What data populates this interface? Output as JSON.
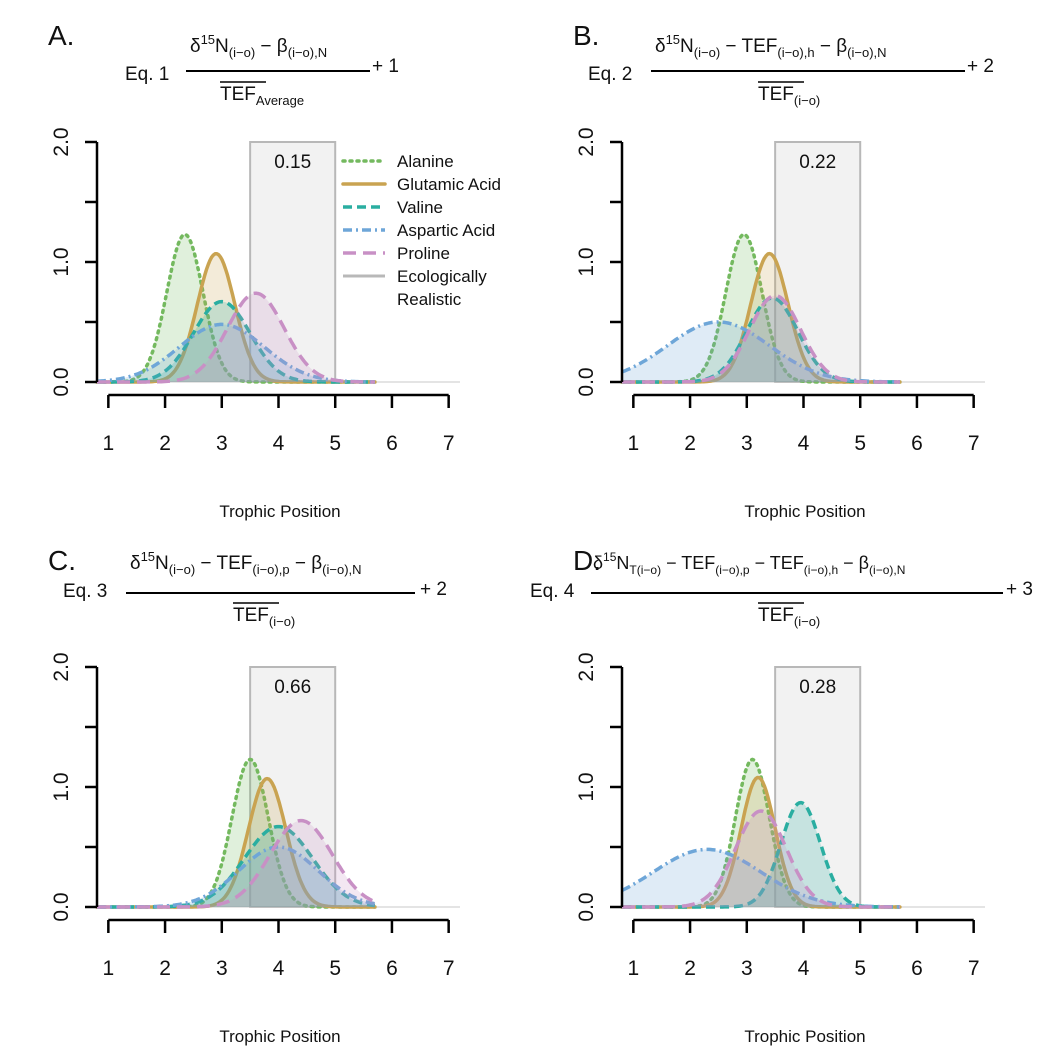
{
  "colors": {
    "alanine": "#74b95f",
    "glutamic": "#c9a351",
    "valine": "#2aaea1",
    "aspartic": "#6ea6d8",
    "proline": "#c890c5",
    "realistic": "#b8b8b8",
    "axis": "#000000"
  },
  "legend": {
    "items": [
      {
        "label": "Alanine",
        "key": "alanine"
      },
      {
        "label": "Glutamic Acid",
        "key": "glutamic"
      },
      {
        "label": "Valine",
        "key": "valine"
      },
      {
        "label": "Aspartic Acid",
        "key": "aspartic"
      },
      {
        "label": "Proline",
        "key": "proline"
      },
      {
        "label": "Ecologically",
        "key": "realistic"
      },
      {
        "label": "Realistic",
        "key": ""
      }
    ]
  },
  "chart_data": [
    {
      "type": "area",
      "panel": "A.",
      "equation": {
        "lhs": "Eq. 1",
        "numerator": "δ15N(i−o) − β(i−o),N",
        "denominator": "TEF Average",
        "rhs": "+ 1"
      },
      "xlabel": "Trophic Position",
      "ylabel": "",
      "xlim": [
        0.8,
        7.2
      ],
      "ylim": [
        0,
        2.0
      ],
      "xticks": [
        "1",
        "2",
        "3",
        "4",
        "5",
        "6",
        "7"
      ],
      "yticks": [
        "0.0",
        "1.0",
        "2.0"
      ],
      "realistic_range": [
        3.5,
        5.0
      ],
      "overlap_value": "0.15",
      "legend_placement": "top-right",
      "series": [
        {
          "name": "Alanine",
          "key": "alanine",
          "mean": 2.35,
          "sd": 0.32,
          "peak": 1.23
        },
        {
          "name": "Glutamic Acid",
          "key": "glutamic",
          "mean": 2.9,
          "sd": 0.33,
          "peak": 1.07
        },
        {
          "name": "Valine",
          "key": "valine",
          "mean": 3.0,
          "sd": 0.5,
          "peak": 0.67
        },
        {
          "name": "Aspartic Acid",
          "key": "aspartic",
          "mean": 3.0,
          "sd": 0.75,
          "peak": 0.48
        },
        {
          "name": "Proline",
          "key": "proline",
          "mean": 3.6,
          "sd": 0.5,
          "peak": 0.74
        }
      ]
    },
    {
      "type": "area",
      "panel": "B.",
      "equation": {
        "lhs": "Eq. 2",
        "numerator": "δ15N(i−o) − TEF(i−o),h − β(i−o),N",
        "denominator": "TEF(i−o)",
        "rhs": "+ 2"
      },
      "xlabel": "Trophic Position",
      "ylabel": "",
      "xlim": [
        0.8,
        7.2
      ],
      "ylim": [
        0,
        2.0
      ],
      "xticks": [
        "1",
        "2",
        "3",
        "4",
        "5",
        "6",
        "7"
      ],
      "yticks": [
        "0.0",
        "1.0",
        "2.0"
      ],
      "realistic_range": [
        3.5,
        5.0
      ],
      "overlap_value": "0.22",
      "series": [
        {
          "name": "Alanine",
          "key": "alanine",
          "mean": 2.95,
          "sd": 0.32,
          "peak": 1.23
        },
        {
          "name": "Glutamic Acid",
          "key": "glutamic",
          "mean": 3.4,
          "sd": 0.33,
          "peak": 1.07
        },
        {
          "name": "Valine",
          "key": "valine",
          "mean": 3.45,
          "sd": 0.45,
          "peak": 0.7
        },
        {
          "name": "Aspartic Acid",
          "key": "aspartic",
          "mean": 2.5,
          "sd": 0.9,
          "peak": 0.5
        },
        {
          "name": "Proline",
          "key": "proline",
          "mean": 3.5,
          "sd": 0.45,
          "peak": 0.72
        }
      ]
    },
    {
      "type": "area",
      "panel": "C.",
      "equation": {
        "lhs": "Eq. 3",
        "numerator": "δ15N(i−o) − TEF(i−o),p − β(i−o),N",
        "denominator": "TEF(i−o)",
        "rhs": "+ 2"
      },
      "xlabel": "Trophic Position",
      "ylabel": "",
      "xlim": [
        0.8,
        7.2
      ],
      "ylim": [
        0,
        2.0
      ],
      "xticks": [
        "1",
        "2",
        "3",
        "4",
        "5",
        "6",
        "7"
      ],
      "yticks": [
        "0.0",
        "1.0",
        "2.0"
      ],
      "realistic_range": [
        3.5,
        5.0
      ],
      "overlap_value": "0.66",
      "series": [
        {
          "name": "Alanine",
          "key": "alanine",
          "mean": 3.5,
          "sd": 0.32,
          "peak": 1.23
        },
        {
          "name": "Glutamic Acid",
          "key": "glutamic",
          "mean": 3.8,
          "sd": 0.33,
          "peak": 1.07
        },
        {
          "name": "Valine",
          "key": "valine",
          "mean": 4.0,
          "sd": 0.6,
          "peak": 0.67
        },
        {
          "name": "Aspartic Acid",
          "key": "aspartic",
          "mean": 4.0,
          "sd": 0.7,
          "peak": 0.5
        },
        {
          "name": "Proline",
          "key": "proline",
          "mean": 4.4,
          "sd": 0.55,
          "peak": 0.72
        }
      ]
    },
    {
      "type": "area",
      "panel": "D.",
      "equation": {
        "lhs": "Eq. 4",
        "numerator": "δ15NT(i−o) − TEF(i−o),p − TEF(i−o),h − β(i−o),N",
        "denominator": "TEF(i−o)",
        "rhs": "+ 3"
      },
      "xlabel": "Trophic Position",
      "ylabel": "",
      "xlim": [
        0.8,
        7.2
      ],
      "ylim": [
        0,
        2.0
      ],
      "xticks": [
        "1",
        "2",
        "3",
        "4",
        "5",
        "6",
        "7"
      ],
      "yticks": [
        "0.0",
        "1.0",
        "2.0"
      ],
      "realistic_range": [
        3.5,
        5.0
      ],
      "overlap_value": "0.28",
      "series": [
        {
          "name": "Alanine",
          "key": "alanine",
          "mean": 3.1,
          "sd": 0.3,
          "peak": 1.23
        },
        {
          "name": "Glutamic Acid",
          "key": "glutamic",
          "mean": 3.2,
          "sd": 0.3,
          "peak": 1.08
        },
        {
          "name": "Valine",
          "key": "valine",
          "mean": 3.95,
          "sd": 0.35,
          "peak": 0.87
        },
        {
          "name": "Aspartic Acid",
          "key": "aspartic",
          "mean": 2.3,
          "sd": 0.95,
          "peak": 0.48
        },
        {
          "name": "Proline",
          "key": "proline",
          "mean": 3.25,
          "sd": 0.45,
          "peak": 0.8
        }
      ]
    }
  ]
}
